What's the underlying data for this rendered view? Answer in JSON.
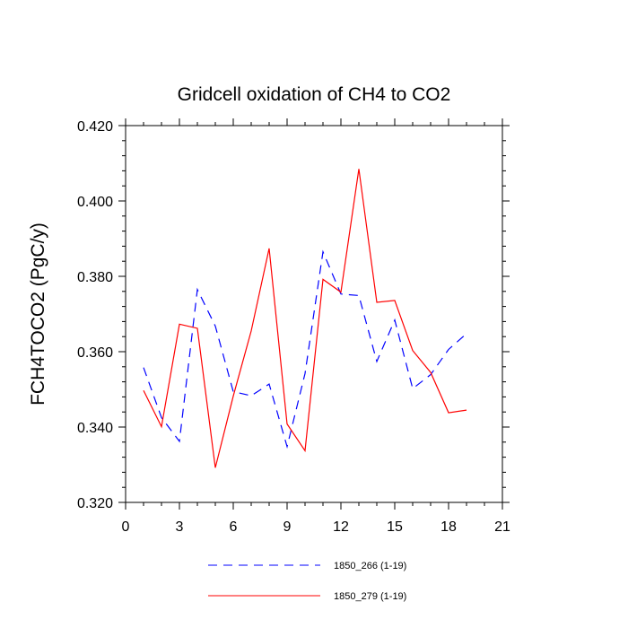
{
  "chart_data": {
    "type": "line",
    "title": "Gridcell oxidation of CH4 to CO2",
    "xlabel": "",
    "ylabel": "FCH4TOCO2  (PgC/y)",
    "xlim": [
      0,
      21
    ],
    "ylim": [
      0.32,
      0.42
    ],
    "x_ticks": [
      0,
      3,
      6,
      9,
      12,
      15,
      18,
      21
    ],
    "x_tick_labels": [
      "0",
      "3",
      "6",
      "9",
      "12",
      "15",
      "18",
      "21"
    ],
    "y_ticks": [
      0.32,
      0.34,
      0.36,
      0.38,
      0.4,
      0.42
    ],
    "y_tick_labels": [
      "0.320",
      "0.340",
      "0.360",
      "0.380",
      "0.400",
      "0.420"
    ],
    "x": [
      1,
      2,
      3,
      4,
      5,
      6,
      7,
      8,
      9,
      10,
      11,
      12,
      13,
      14,
      15,
      16,
      17,
      18,
      19
    ],
    "series": [
      {
        "name": "1850_266 (1-19)",
        "color": "#0000ff",
        "style": "dashed",
        "values": [
          0.3558,
          0.3425,
          0.3362,
          0.3765,
          0.3668,
          0.3494,
          0.3483,
          0.3514,
          0.3348,
          0.3542,
          0.3865,
          0.3753,
          0.3749,
          0.3574,
          0.3684,
          0.3502,
          0.3539,
          0.3606,
          0.3648
        ]
      },
      {
        "name": "1850_279 (1-19)",
        "color": "#ff0000",
        "style": "solid",
        "values": [
          0.3497,
          0.3401,
          0.3673,
          0.3662,
          0.3292,
          0.3482,
          0.3655,
          0.3874,
          0.3408,
          0.3337,
          0.3792,
          0.3758,
          0.4085,
          0.3731,
          0.3736,
          0.3603,
          0.3545,
          0.3438,
          0.3445
        ]
      }
    ],
    "legend_position": "bottom"
  }
}
